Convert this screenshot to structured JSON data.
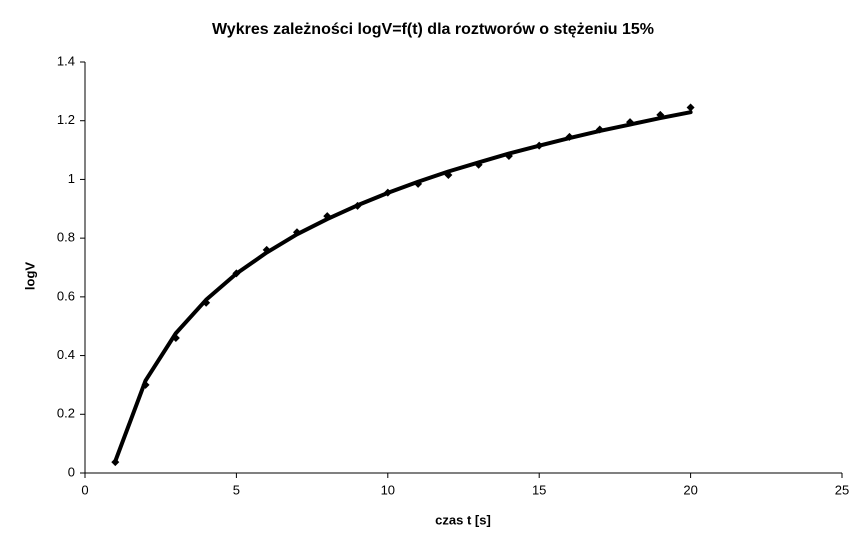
{
  "chart_data": {
    "type": "scatter",
    "title": "Wykres zależności logV=f(t) dla roztworów o stężeniu 15%",
    "x_label": "czas t [s]",
    "y_label": "logV",
    "x": [
      1,
      2,
      3,
      4,
      5,
      6,
      7,
      8,
      9,
      10,
      11,
      12,
      13,
      14,
      15,
      16,
      17,
      18,
      19,
      20
    ],
    "series": [
      {
        "style": "markers",
        "color": "#000000",
        "values": [
          0.037,
          0.3,
          0.46,
          0.58,
          0.68,
          0.76,
          0.82,
          0.875,
          0.91,
          0.955,
          0.985,
          1.015,
          1.05,
          1.08,
          1.115,
          1.145,
          1.17,
          1.195,
          1.22,
          1.245
        ]
      },
      {
        "style": "line",
        "color": "#000000",
        "values": [
          0.04,
          0.315,
          0.476,
          0.59,
          0.679,
          0.751,
          0.813,
          0.865,
          0.912,
          0.954,
          0.992,
          1.027,
          1.058,
          1.088,
          1.115,
          1.141,
          1.165,
          1.187,
          1.209,
          1.229
        ]
      }
    ],
    "xlim": [
      0,
      25
    ],
    "xticks": [
      0,
      5,
      10,
      15,
      20,
      25
    ],
    "ylim": [
      0,
      1.4
    ],
    "yticks": [
      0,
      0.2,
      0.4,
      0.6,
      0.8,
      1,
      1.2,
      1.4
    ],
    "grid": false
  }
}
